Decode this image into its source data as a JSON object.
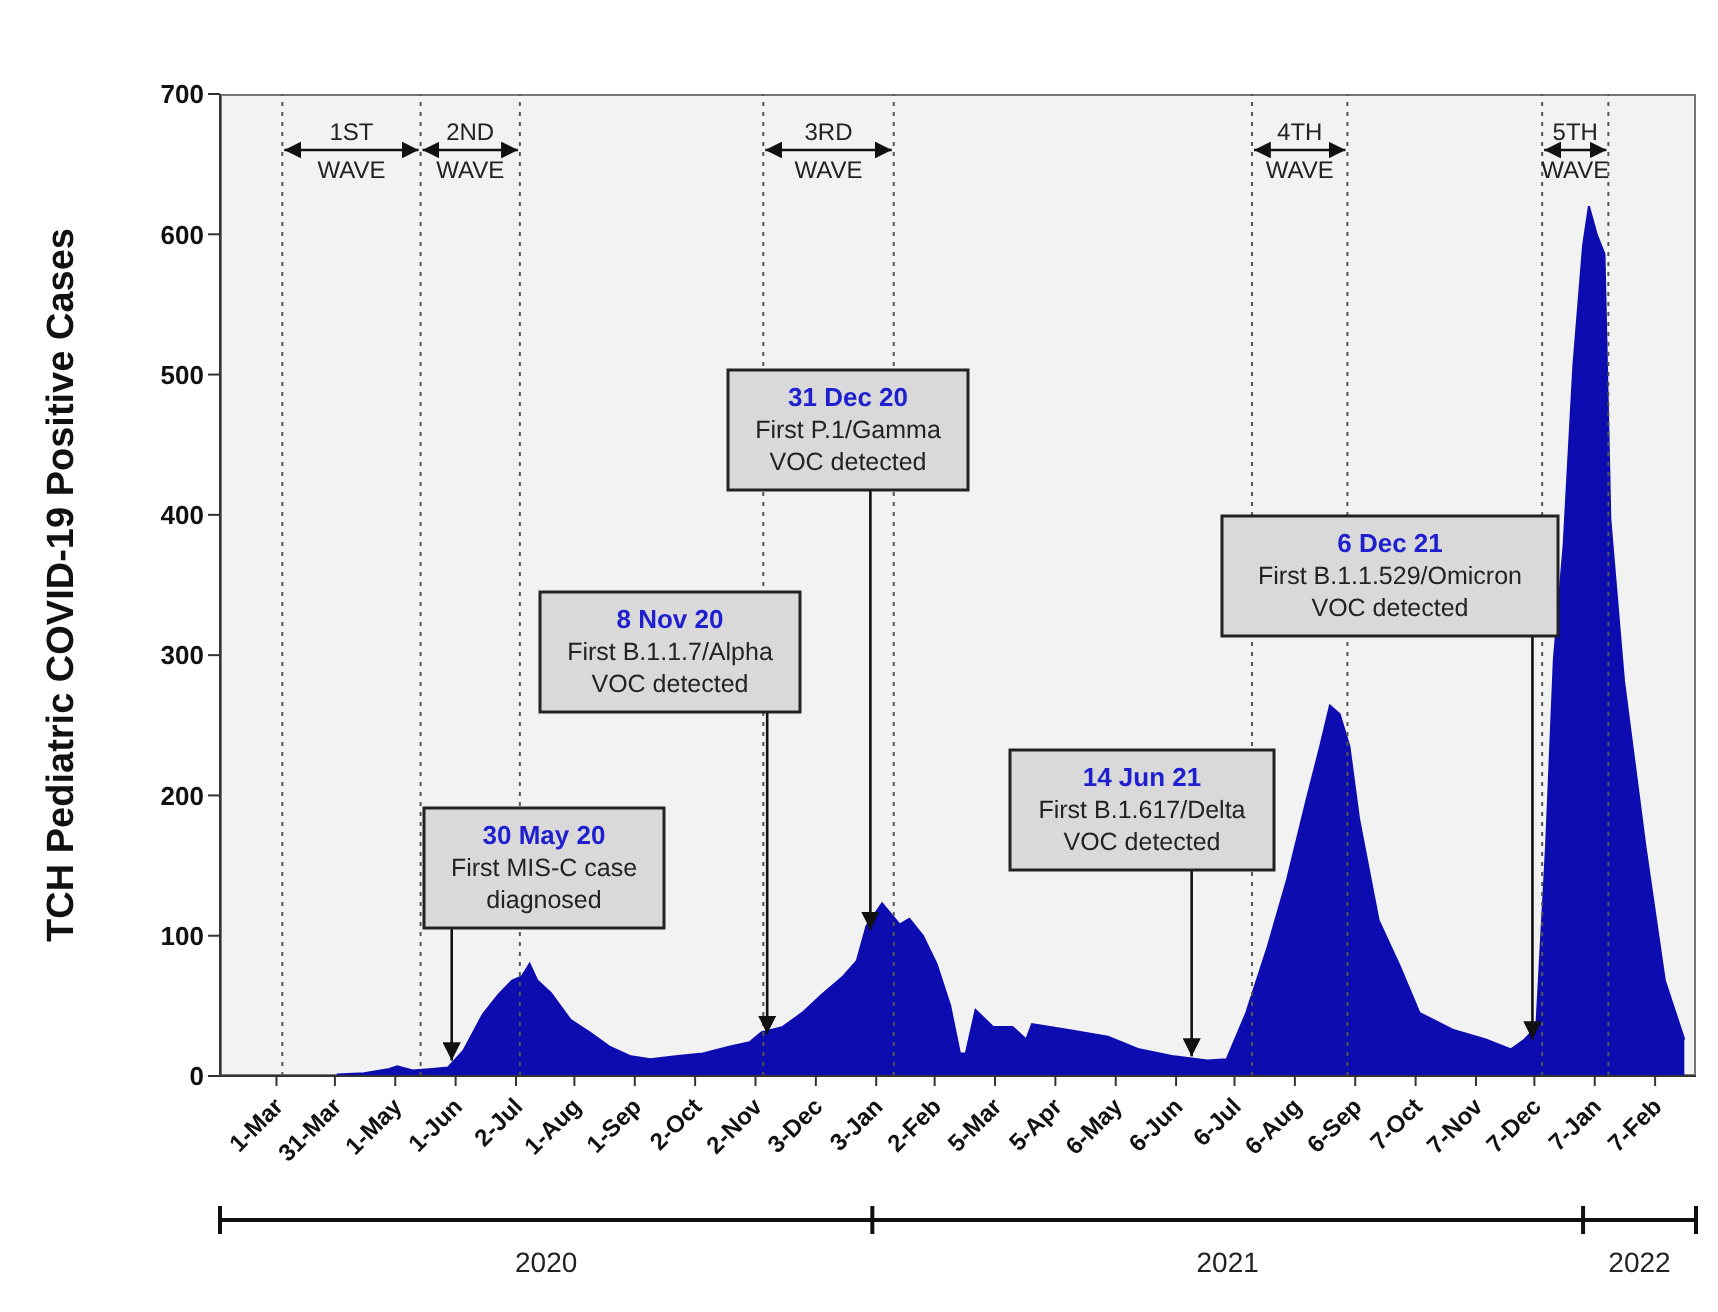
{
  "chart_data": {
    "type": "area",
    "ylabel": "TCH Pediatric COVID-19 Positive Cases",
    "x": [
      "2020-04-01",
      "2020-04-15",
      "2020-04-28",
      "2020-05-02",
      "2020-05-10",
      "2020-05-20",
      "2020-05-28",
      "2020-06-05",
      "2020-06-15",
      "2020-06-23",
      "2020-06-30",
      "2020-07-05",
      "2020-07-09",
      "2020-07-13",
      "2020-07-20",
      "2020-07-30",
      "2020-08-09",
      "2020-08-19",
      "2020-08-30",
      "2020-09-09",
      "2020-09-22",
      "2020-10-06",
      "2020-10-20",
      "2020-10-30",
      "2020-11-05",
      "2020-11-16",
      "2020-11-26",
      "2020-12-06",
      "2020-12-17",
      "2020-12-24",
      "2020-12-29",
      "2021-01-06",
      "2021-01-15",
      "2021-01-20",
      "2021-01-27",
      "2021-02-03",
      "2021-02-10",
      "2021-02-15",
      "2021-02-18",
      "2021-02-23",
      "2021-03-04",
      "2021-03-14",
      "2021-03-21",
      "2021-03-24",
      "2021-04-11",
      "2021-05-02",
      "2021-05-18",
      "2021-06-05",
      "2021-06-22",
      "2021-07-02",
      "2021-07-12",
      "2021-07-23",
      "2021-08-02",
      "2021-08-12",
      "2021-08-19",
      "2021-08-24",
      "2021-08-29",
      "2021-09-03",
      "2021-09-08",
      "2021-09-18",
      "2021-09-29",
      "2021-10-09",
      "2021-10-26",
      "2021-11-12",
      "2021-11-25",
      "2021-12-02",
      "2021-12-08",
      "2021-12-13",
      "2021-12-17",
      "2021-12-22",
      "2021-12-27",
      "2022-01-01",
      "2022-01-04",
      "2022-01-08",
      "2022-01-12",
      "2022-01-15",
      "2022-01-22",
      "2022-02-02",
      "2022-02-12",
      "2022-02-22"
    ],
    "series": [
      {
        "color": "#0c0cb0",
        "values": [
          1,
          2,
          5,
          7,
          4,
          5,
          6,
          18,
          44,
          58,
          68,
          71,
          80,
          68,
          59,
          40,
          31,
          21,
          14,
          12,
          14,
          16,
          21,
          24,
          31,
          35,
          45,
          58,
          71,
          82,
          107,
          123,
          108,
          112,
          100,
          80,
          50,
          16,
          16,
          47,
          35,
          35,
          26,
          37,
          33,
          28,
          19,
          14,
          11,
          12,
          45,
          92,
          140,
          197,
          235,
          264,
          258,
          235,
          183,
          111,
          78,
          45,
          33,
          26,
          19,
          26,
          35,
          164,
          297,
          378,
          506,
          592,
          620,
          600,
          586,
          397,
          282,
          164,
          68,
          26
        ]
      }
    ],
    "xlim": [
      "2020-02-01",
      "2022-02-28"
    ],
    "xticks": [
      {
        "value": "2020-03-01",
        "label": "1-Mar"
      },
      {
        "value": "2020-03-31",
        "label": "31-Mar"
      },
      {
        "value": "2020-05-01",
        "label": "1-May"
      },
      {
        "value": "2020-06-01",
        "label": "1-Jun"
      },
      {
        "value": "2020-07-02",
        "label": "2-Jul"
      },
      {
        "value": "2020-08-01",
        "label": "1-Aug"
      },
      {
        "value": "2020-09-01",
        "label": "1-Sep"
      },
      {
        "value": "2020-10-02",
        "label": "2-Oct"
      },
      {
        "value": "2020-11-02",
        "label": "2-Nov"
      },
      {
        "value": "2020-12-03",
        "label": "3-Dec"
      },
      {
        "value": "2021-01-03",
        "label": "3-Jan"
      },
      {
        "value": "2021-02-02",
        "label": "2-Feb"
      },
      {
        "value": "2021-03-05",
        "label": "5-Mar"
      },
      {
        "value": "2021-04-05",
        "label": "5-Apr"
      },
      {
        "value": "2021-05-06",
        "label": "6-May"
      },
      {
        "value": "2021-06-06",
        "label": "6-Jun"
      },
      {
        "value": "2021-07-06",
        "label": "6-Jul"
      },
      {
        "value": "2021-08-06",
        "label": "6-Aug"
      },
      {
        "value": "2021-09-06",
        "label": "6-Sep"
      },
      {
        "value": "2021-10-07",
        "label": "7-Oct"
      },
      {
        "value": "2021-11-07",
        "label": "7-Nov"
      },
      {
        "value": "2021-12-07",
        "label": "7-Dec"
      },
      {
        "value": "2022-01-07",
        "label": "7-Jan"
      },
      {
        "value": "2022-02-07",
        "label": "7-Feb"
      }
    ],
    "ylim": [
      0,
      700
    ],
    "yticks": [
      0,
      100,
      200,
      300,
      400,
      500,
      600,
      700
    ],
    "ref_lines": [
      {
        "axis": "x",
        "value": "2020-03-04",
        "line_style": "dotted"
      },
      {
        "axis": "x",
        "value": "2020-05-14",
        "line_style": "dotted"
      },
      {
        "axis": "x",
        "value": "2020-07-04",
        "line_style": "dotted"
      },
      {
        "axis": "x",
        "value": "2020-11-06",
        "line_style": "dotted"
      },
      {
        "axis": "x",
        "value": "2021-01-12",
        "line_style": "dotted"
      },
      {
        "axis": "x",
        "value": "2021-07-15",
        "line_style": "dotted"
      },
      {
        "axis": "x",
        "value": "2021-09-02",
        "line_style": "dotted"
      },
      {
        "axis": "x",
        "value": "2021-12-11",
        "line_style": "dotted"
      },
      {
        "axis": "x",
        "value": "2022-01-14",
        "line_style": "dotted"
      }
    ],
    "annotations": [
      {
        "text": "30 May 20\nFirst MIS-C case\ndiagnosed",
        "x": "2020-05-30",
        "y": 11
      },
      {
        "text": "8 Nov 20\nFirst B.1.1.7/Alpha\nVOC detected",
        "x": "2020-11-08",
        "y": 30
      },
      {
        "text": "31 Dec 20\nFirst P.1/Gamma\nVOC detected",
        "x": "2020-12-31",
        "y": 104
      },
      {
        "text": "14 Jun 21\nFirst B.1.617/Delta\nVOC detected",
        "x": "2021-06-14",
        "y": 14
      },
      {
        "text": "6 Dec 21\nFirst B.1.1.529/Omicron\nVOC detected",
        "x": "2021-12-06",
        "y": 26
      },
      "1ST WAVE",
      "2ND WAVE",
      "3RD WAVE",
      "4TH WAVE",
      "5TH WAVE",
      "2020",
      "2021",
      "2022"
    ]
  }
}
